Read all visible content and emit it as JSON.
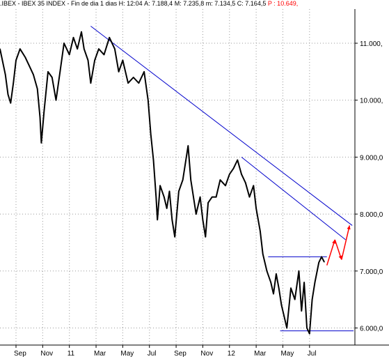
{
  "header": {
    "prefix": ".IBEX - IBEX 35 INDEX - Fin de dia 1 dias",
    "high": "H: 12:04",
    "ask": "A: 7.188,4",
    "mid": "M: 7.235,8",
    "min": "m: 7.134,5",
    "close": "C: 7.164,5",
    "last": "P : 10.649,"
  },
  "chart_data": {
    "type": "line",
    "title": "",
    "xlabel": "",
    "ylabel": "",
    "ylim": [
      5700,
      11600
    ],
    "y_ticks": [
      {
        "value": 6000,
        "label": "6.000,0"
      },
      {
        "value": 7000,
        "label": "7.000,0"
      },
      {
        "value": 8000,
        "label": "8.000,0"
      },
      {
        "value": 9000,
        "label": "9.000,0"
      },
      {
        "value": 10000,
        "label": "10.000,"
      },
      {
        "value": 11000,
        "label": "11.000,"
      }
    ],
    "x_ticks": [
      {
        "t": 0.0,
        "label": "Sep"
      },
      {
        "t": 2.0,
        "label": "Nov"
      },
      {
        "t": 4.0,
        "label": "11"
      },
      {
        "t": 6.0,
        "label": "Mar"
      },
      {
        "t": 8.0,
        "label": "May"
      },
      {
        "t": 10.0,
        "label": "Jul"
      },
      {
        "t": 12.0,
        "label": "Sep"
      },
      {
        "t": 14.0,
        "label": "Nov"
      },
      {
        "t": 16.0,
        "label": "12"
      },
      {
        "t": 18.0,
        "label": "Mar"
      },
      {
        "t": 20.0,
        "label": "May"
      },
      {
        "t": 22.0,
        "label": "Jul"
      }
    ],
    "xlim": [
      -1.2,
      25.4
    ],
    "series": [
      {
        "values": [
          [
            -1.2,
            10900
          ],
          [
            -0.8,
            10450
          ],
          [
            -0.6,
            10100
          ],
          [
            -0.4,
            9950
          ],
          [
            -0.2,
            10300
          ],
          [
            0.0,
            10700
          ],
          [
            0.3,
            10900
          ],
          [
            0.7,
            10750
          ],
          [
            1.0,
            10600
          ],
          [
            1.3,
            10450
          ],
          [
            1.6,
            10200
          ],
          [
            1.8,
            9700
          ],
          [
            1.9,
            9250
          ],
          [
            2.1,
            9800
          ],
          [
            2.4,
            10500
          ],
          [
            2.7,
            10400
          ],
          [
            3.0,
            10000
          ],
          [
            3.3,
            10500
          ],
          [
            3.6,
            11000
          ],
          [
            4.0,
            10800
          ],
          [
            4.3,
            11100
          ],
          [
            4.6,
            10900
          ],
          [
            4.9,
            11200
          ],
          [
            5.1,
            10900
          ],
          [
            5.4,
            10700
          ],
          [
            5.6,
            10300
          ],
          [
            5.9,
            10700
          ],
          [
            6.2,
            10900
          ],
          [
            6.6,
            10800
          ],
          [
            7.0,
            11100
          ],
          [
            7.4,
            10900
          ],
          [
            7.7,
            10500
          ],
          [
            8.0,
            10700
          ],
          [
            8.4,
            10300
          ],
          [
            8.8,
            10400
          ],
          [
            9.2,
            10300
          ],
          [
            9.6,
            10500
          ],
          [
            9.9,
            10000
          ],
          [
            10.1,
            9400
          ],
          [
            10.3,
            8950
          ],
          [
            10.5,
            8300
          ],
          [
            10.6,
            7900
          ],
          [
            10.8,
            8500
          ],
          [
            11.1,
            8300
          ],
          [
            11.3,
            8100
          ],
          [
            11.5,
            8400
          ],
          [
            11.7,
            7900
          ],
          [
            11.9,
            7600
          ],
          [
            12.2,
            8400
          ],
          [
            12.5,
            8600
          ],
          [
            12.7,
            8900
          ],
          [
            12.9,
            9200
          ],
          [
            13.1,
            8600
          ],
          [
            13.3,
            8300
          ],
          [
            13.5,
            8000
          ],
          [
            13.8,
            8300
          ],
          [
            14.0,
            7900
          ],
          [
            14.2,
            7600
          ],
          [
            14.4,
            8200
          ],
          [
            14.7,
            8300
          ],
          [
            15.0,
            8300
          ],
          [
            15.3,
            8600
          ],
          [
            15.7,
            8500
          ],
          [
            16.0,
            8700
          ],
          [
            16.3,
            8800
          ],
          [
            16.6,
            8950
          ],
          [
            16.9,
            8700
          ],
          [
            17.2,
            8550
          ],
          [
            17.5,
            8300
          ],
          [
            17.8,
            8500
          ],
          [
            18.0,
            8100
          ],
          [
            18.3,
            7700
          ],
          [
            18.5,
            7300
          ],
          [
            18.8,
            7000
          ],
          [
            19.1,
            6800
          ],
          [
            19.3,
            6600
          ],
          [
            19.5,
            6950
          ],
          [
            19.7,
            6700
          ],
          [
            19.9,
            6400
          ],
          [
            20.1,
            6200
          ],
          [
            20.3,
            6000
          ],
          [
            20.6,
            6700
          ],
          [
            20.9,
            6500
          ],
          [
            21.2,
            7000
          ],
          [
            21.4,
            6300
          ],
          [
            21.6,
            6800
          ],
          [
            21.8,
            6000
          ],
          [
            22.0,
            5900
          ],
          [
            22.2,
            6500
          ],
          [
            22.4,
            6800
          ],
          [
            22.7,
            7150
          ],
          [
            22.9,
            7250
          ],
          [
            23.1,
            7160
          ]
        ]
      }
    ],
    "trendlines": [
      {
        "color": "#0000cc",
        "points": [
          [
            5.6,
            11300
          ],
          [
            25.2,
            7800
          ]
        ]
      },
      {
        "color": "#0000cc",
        "points": [
          [
            16.9,
            9000
          ],
          [
            24.7,
            7550
          ]
        ]
      },
      {
        "color": "#0000cc",
        "points": [
          [
            18.9,
            7250
          ],
          [
            23.3,
            7250
          ]
        ]
      },
      {
        "color": "#0000cc",
        "points": [
          [
            19.8,
            5950
          ],
          [
            25.3,
            5950
          ]
        ]
      }
    ],
    "arrows": [
      {
        "color": "#ff0000",
        "from": [
          23.3,
          7100
        ],
        "to": [
          23.9,
          7550
        ]
      },
      {
        "color": "#ff0000",
        "from": [
          23.9,
          7550
        ],
        "to": [
          24.4,
          7200
        ]
      },
      {
        "color": "#ff0000",
        "from": [
          24.4,
          7200
        ],
        "to": [
          25.0,
          7800
        ]
      }
    ]
  }
}
